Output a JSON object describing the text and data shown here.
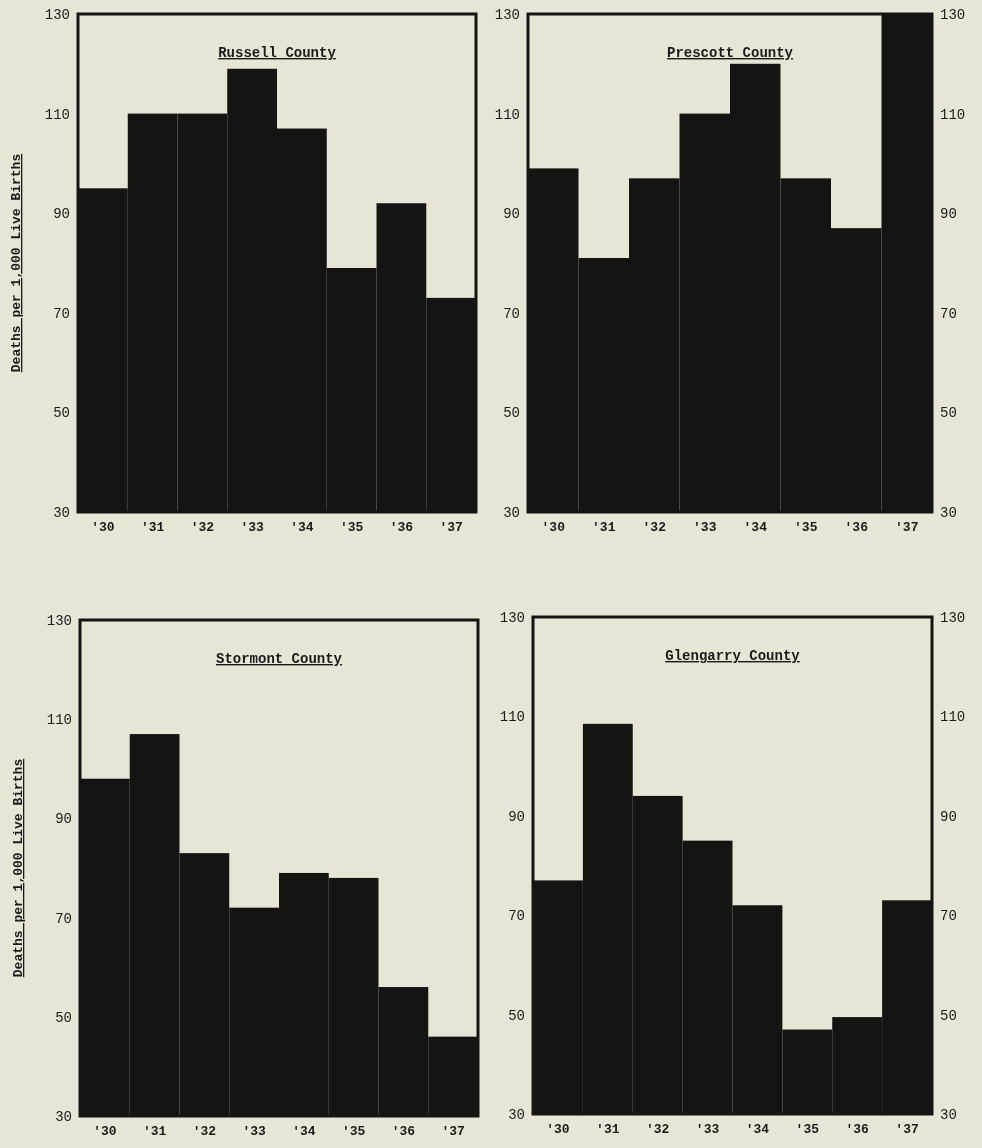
{
  "chart_data": [
    {
      "type": "bar",
      "title": "Russell County",
      "ylabel": "Deaths per 1,000 Live Births",
      "categories": [
        "'30",
        "'31",
        "'32",
        "'33",
        "'34",
        "'35",
        "'36",
        "'37"
      ],
      "values": [
        95,
        110,
        110,
        119,
        107,
        79,
        92,
        73
      ],
      "color": "#151412",
      "ylim": [
        30,
        130
      ],
      "yticks": [
        30,
        50,
        70,
        90,
        110,
        130
      ],
      "grid": false
    },
    {
      "type": "bar",
      "title": "Prescott County",
      "categories": [
        "'30",
        "'31",
        "'32",
        "'33",
        "'34",
        "'35",
        "'36",
        "'37"
      ],
      "values": [
        99,
        81,
        97,
        110,
        120,
        97,
        87,
        130
      ],
      "color": "#151412",
      "ylim": [
        30,
        130
      ],
      "yticks": [
        30,
        50,
        70,
        90,
        110,
        130
      ],
      "y2lim": [
        30,
        130
      ],
      "y2ticks": [
        30,
        50,
        70,
        90,
        110,
        130
      ],
      "grid": false
    },
    {
      "type": "bar",
      "title": "Stormont County",
      "ylabel": "Deaths per 1,000 Live Births",
      "categories": [
        "'30",
        "'31",
        "'32",
        "'33",
        "'34",
        "'35",
        "'36",
        "'37"
      ],
      "values": [
        98,
        107,
        83,
        72,
        79,
        78,
        56,
        46
      ],
      "color": "#151412",
      "ylim": [
        30,
        130
      ],
      "yticks": [
        30,
        50,
        70,
        90,
        110,
        130
      ],
      "grid": false
    },
    {
      "type": "bar",
      "title": "Glengarry County",
      "categories": [
        "'30",
        "'31",
        "'32",
        "'33",
        "'34",
        "'35",
        "'36",
        "'37"
      ],
      "values": [
        77,
        108.5,
        94,
        85,
        72,
        47,
        49.5,
        73
      ],
      "color": "#151412",
      "ylim": [
        30,
        130
      ],
      "yticks": [
        30,
        50,
        70,
        90,
        110,
        130
      ],
      "y2lim": [
        30,
        130
      ],
      "y2ticks": [
        30,
        50,
        70,
        90,
        110,
        130
      ],
      "grid": false
    }
  ]
}
